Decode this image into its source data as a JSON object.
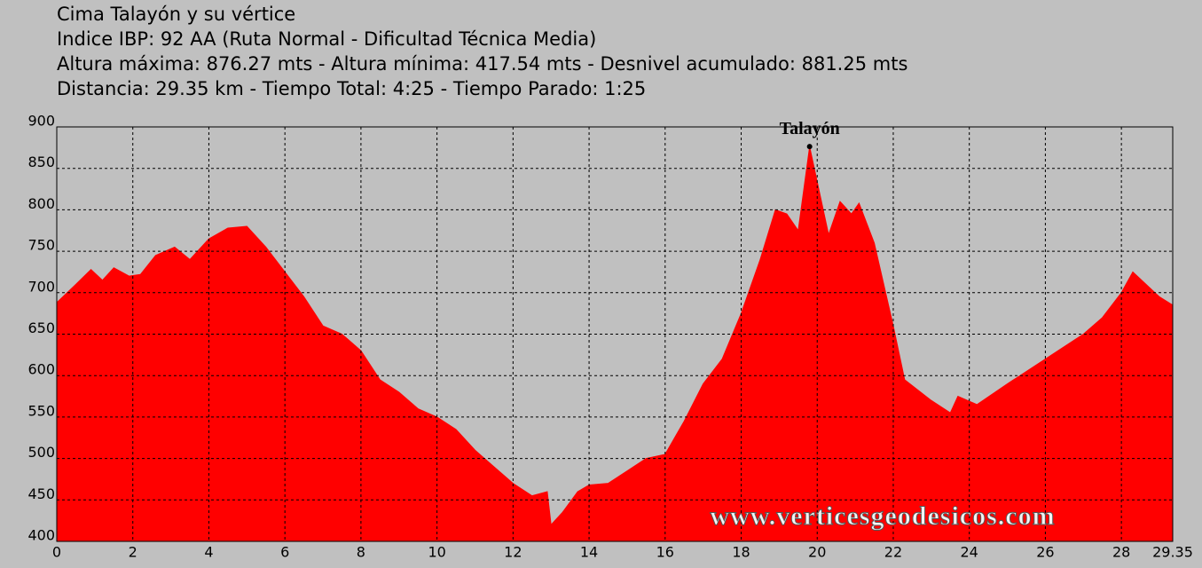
{
  "chart_data": {
    "type": "area",
    "title": "Cima Talayón y su vértice",
    "subtitles": [
      "Indice IBP: 92 AA (Ruta Normal - Dificultad Técnica Media)",
      "Altura máxima: 876.27 mts - Altura mínima: 417.54 mts - Desnivel acumulado: 881.25 mts",
      "Distancia: 29.35 km - Tiempo Total: 4:25  - Tiempo Parado: 1:25"
    ],
    "x": [
      0,
      0.5,
      0.9,
      1.2,
      1.5,
      1.9,
      2.2,
      2.6,
      3.1,
      3.5,
      4.0,
      4.5,
      5.0,
      5.5,
      6.0,
      6.5,
      7.0,
      7.5,
      8.0,
      8.5,
      9.0,
      9.5,
      10.0,
      10.5,
      11.0,
      11.5,
      12.0,
      12.5,
      12.9,
      13.0,
      13.3,
      13.7,
      14.0,
      14.5,
      15.0,
      15.5,
      16.0,
      16.5,
      17.0,
      17.5,
      18.0,
      18.5,
      18.9,
      19.2,
      19.5,
      19.8,
      20.3,
      20.6,
      20.9,
      21.1,
      21.5,
      22.0,
      22.3,
      23.0,
      23.5,
      23.7,
      24.2,
      25.0,
      26.0,
      27.0,
      27.5,
      28.0,
      28.3,
      29.0,
      29.35
    ],
    "values": [
      688,
      710,
      728,
      715,
      730,
      720,
      722,
      745,
      755,
      740,
      765,
      778,
      780,
      755,
      725,
      695,
      660,
      650,
      630,
      595,
      580,
      560,
      550,
      535,
      510,
      490,
      470,
      455,
      460,
      420,
      435,
      460,
      468,
      470,
      485,
      500,
      505,
      545,
      590,
      620,
      675,
      740,
      800,
      795,
      775,
      876.27,
      770,
      810,
      795,
      808,
      760,
      660,
      595,
      570,
      555,
      575,
      565,
      590,
      620,
      650,
      670,
      700,
      725,
      695,
      685
    ],
    "color": "#ff0000",
    "xlim": [
      0,
      29.35
    ],
    "ylim": [
      400,
      900
    ],
    "xticks": [
      0,
      2,
      4,
      6,
      8,
      10,
      12,
      14,
      16,
      18,
      20,
      22,
      24,
      26,
      28,
      29.35
    ],
    "yticks": [
      400,
      450,
      500,
      550,
      600,
      650,
      700,
      750,
      800,
      850,
      900
    ],
    "grid": true,
    "annotations": [
      {
        "text": "Talayón",
        "x": 19.8,
        "y": 876.27
      }
    ],
    "watermark": "www.verticesgeodesicos.com"
  }
}
